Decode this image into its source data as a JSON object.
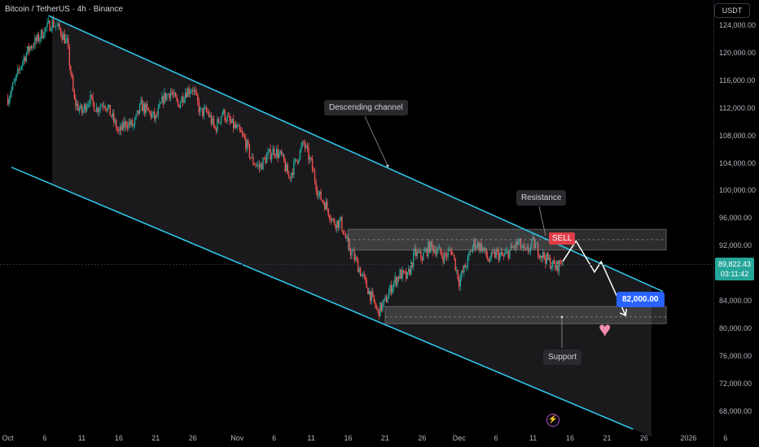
{
  "header": {
    "symbol_title": "Bitcoin / TetherUS · 4h · Binance"
  },
  "currency": "USDT",
  "current_price": {
    "value": "89,822.43",
    "countdown": "03:11:42",
    "color": "#26a69a"
  },
  "annotations": {
    "channel_label": "Descending channel",
    "resistance_label": "Resistance",
    "support_label": "Support",
    "sell_label": "SELL",
    "target_label": "82,000.00"
  },
  "colors": {
    "up": "#26a69a",
    "down": "#ef5350",
    "channel": "#2ec4e6",
    "zone": "#8a8a8a",
    "sell": "#e03e48",
    "target": "#2962ff",
    "heart": "#f28cb0"
  },
  "icons": [
    "heart-icon",
    "bolt-icon"
  ],
  "chart_data": {
    "type": "candlestick",
    "timeframe": "4h",
    "y_axis": {
      "ticks": [
        "124,000.00",
        "120,000.00",
        "116,000.00",
        "112,000.00",
        "108,000.00",
        "104,000.00",
        "100,000.00",
        "96,000.00",
        "92,000.00",
        "88,000.00",
        "84,000.00",
        "80,000.00",
        "76,000.00",
        "72,000.00",
        "68,000.00"
      ],
      "ylim": [
        65000,
        126800
      ]
    },
    "x_axis": {
      "ticks": [
        "Oct",
        "6",
        "11",
        "16",
        "21",
        "26",
        "Nov",
        "6",
        "11",
        "16",
        "21",
        "26",
        "Dec",
        "6",
        "11",
        "16",
        "21",
        "26",
        "2026",
        "6"
      ],
      "tick_days": [
        1,
        6,
        11,
        16,
        21,
        26,
        32,
        37,
        42,
        47,
        52,
        57,
        62,
        67,
        72,
        77,
        82,
        87,
        93,
        98
      ]
    },
    "price_path": {
      "days": [
        1,
        2,
        3,
        4,
        5,
        6,
        7,
        8,
        9,
        10,
        11,
        12,
        13,
        14,
        15,
        16,
        17,
        18,
        19,
        20,
        21,
        22,
        23,
        24,
        25,
        26,
        27,
        28,
        29,
        30,
        31,
        32,
        33,
        34,
        35,
        36,
        37,
        38,
        39,
        40,
        41,
        42,
        43,
        44,
        45,
        46,
        47,
        48,
        49,
        50,
        51,
        52,
        53,
        54,
        55,
        56,
        57,
        58,
        59,
        60,
        61,
        62,
        63,
        64,
        65,
        66,
        67,
        68,
        69,
        70,
        71,
        72,
        73,
        74,
        75,
        76
      ],
      "close": [
        113500,
        116000,
        119000,
        121000,
        122000,
        123500,
        124500,
        123500,
        121500,
        113000,
        111500,
        113500,
        112000,
        113000,
        111000,
        108500,
        110000,
        109500,
        112500,
        111500,
        110500,
        113500,
        114500,
        112500,
        114500,
        115000,
        111500,
        111500,
        109000,
        111500,
        110000,
        109000,
        107500,
        104500,
        103500,
        105000,
        106000,
        105000,
        102000,
        104500,
        107000,
        104000,
        99500,
        98000,
        95500,
        95500,
        92000,
        90000,
        87500,
        85000,
        82500,
        84000,
        86500,
        88000,
        87500,
        91000,
        90500,
        92000,
        91500,
        90500,
        91500,
        87000,
        89500,
        92500,
        92000,
        90000,
        91000,
        90500,
        91500,
        92500,
        91000,
        92500,
        91000,
        90000,
        89000,
        89822.43
      ]
    },
    "channel": {
      "upper_line": {
        "from": {
          "day": 6.5,
          "price": 125500
        },
        "to": {
          "day": 89.5,
          "price": 85500
        }
      },
      "lower_line": {
        "from": {
          "day": 1.5,
          "price": 103500
        },
        "to": {
          "day": 85.5,
          "price": 65500
        }
      }
    },
    "resistance_zone": {
      "x0_day": 47,
      "x1_day": 90,
      "low": 91500,
      "high": 94500
    },
    "support_zone": {
      "x0_day": 52,
      "x1_day": 90,
      "low": 80800,
      "high": 83300
    },
    "projection_path": [
      {
        "day": 76,
        "price": 89822
      },
      {
        "day": 77.8,
        "price": 92800
      },
      {
        "day": 80.3,
        "price": 88300
      },
      {
        "day": 81.2,
        "price": 89800
      },
      {
        "day": 84.5,
        "price": 82000
      }
    ],
    "target_price": 82000,
    "dashed_line_price": 81800
  }
}
